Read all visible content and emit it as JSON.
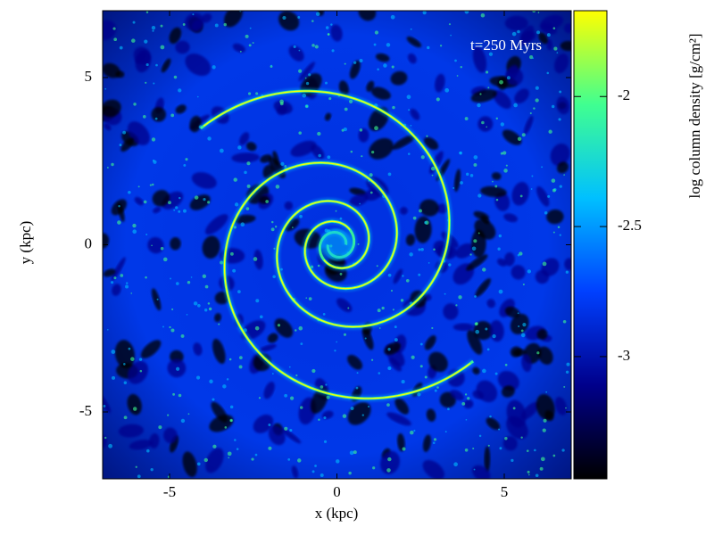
{
  "chart_data": {
    "type": "heatmap",
    "annotation": "t=250 Myrs",
    "xlabel": "x (kpc)",
    "ylabel": "y (kpc)",
    "xlim": [
      -7,
      7
    ],
    "ylim": [
      -7,
      7
    ],
    "xticks": [
      -5,
      0,
      5
    ],
    "yticks": [
      -5,
      0,
      5
    ],
    "colorbar": {
      "label": "log column density [g/cm²]",
      "lim": [
        -3.47,
        -1.67
      ],
      "ticks": [
        -3,
        -2.5,
        -2
      ]
    },
    "colormap": [
      "#000000",
      "#00008b",
      "#0040ff",
      "#00c0ff",
      "#40ff90",
      "#ffff00"
    ]
  }
}
